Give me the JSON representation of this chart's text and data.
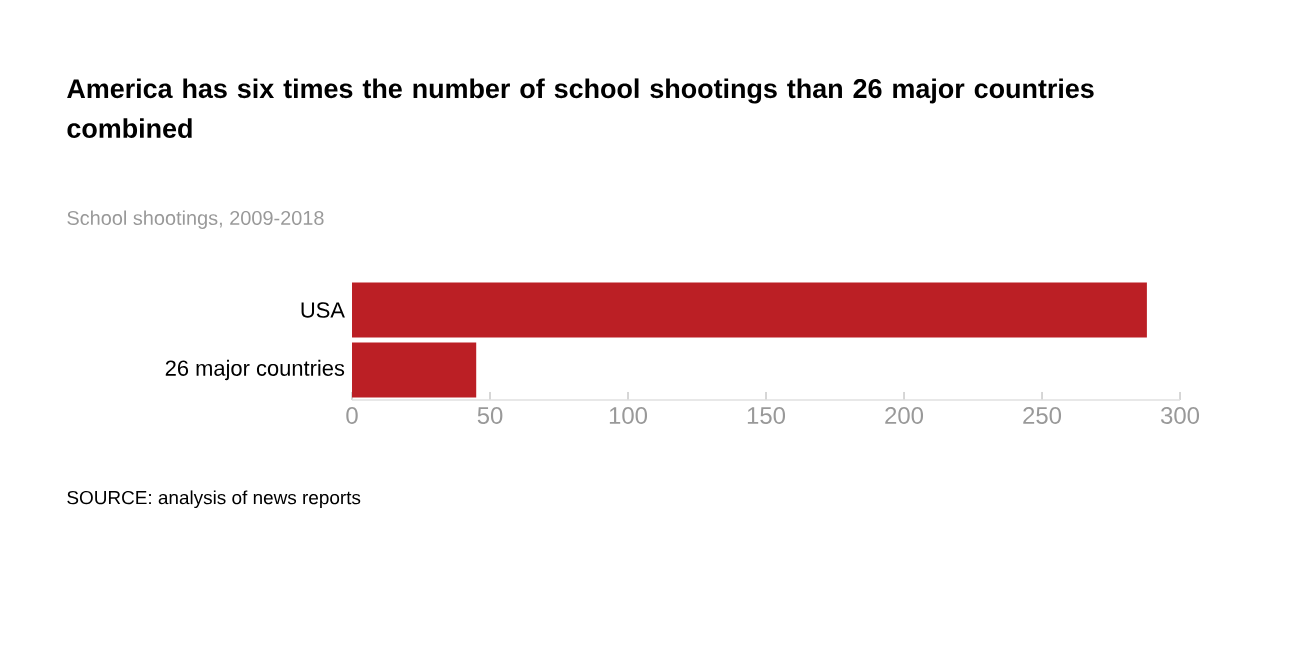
{
  "chart_data": {
    "type": "bar",
    "orientation": "horizontal",
    "title": "America has six times the number of school shootings than 26 major countries combined",
    "subtitle": "School shootings, 2009-2018",
    "categories": [
      "USA",
      "26 major countries"
    ],
    "values": [
      288,
      45
    ],
    "color": "#bb1f25",
    "xlim": [
      0,
      300
    ],
    "xticks": [
      0,
      50,
      100,
      150,
      200,
      250,
      300
    ],
    "annotations": [
      "SOURCE: analysis of news reports"
    ]
  }
}
